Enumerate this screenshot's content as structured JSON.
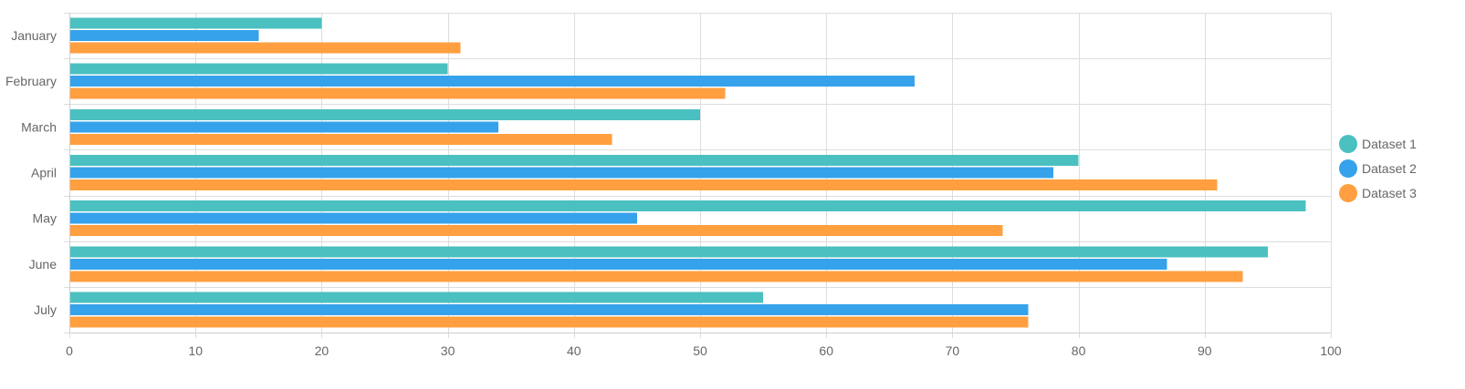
{
  "chart_data": {
    "type": "bar",
    "orientation": "horizontal",
    "title": "",
    "xlabel": "",
    "ylabel": "",
    "categories": [
      "January",
      "February",
      "March",
      "April",
      "May",
      "June",
      "July"
    ],
    "series": [
      {
        "name": "Dataset 1",
        "color": "#4bc0c0",
        "values": [
          20,
          30,
          50,
          80,
          98,
          95,
          55
        ]
      },
      {
        "name": "Dataset 2",
        "color": "#36a2eb",
        "values": [
          15,
          67,
          34,
          78,
          45,
          87,
          76
        ]
      },
      {
        "name": "Dataset 3",
        "color": "#ff9f40",
        "values": [
          31,
          52,
          43,
          91,
          74,
          93,
          76
        ]
      }
    ],
    "xlim": [
      0,
      100
    ],
    "x_ticks": [
      0,
      10,
      20,
      30,
      40,
      50,
      60,
      70,
      80,
      90,
      100
    ],
    "grid": true,
    "legend_position": "right"
  }
}
